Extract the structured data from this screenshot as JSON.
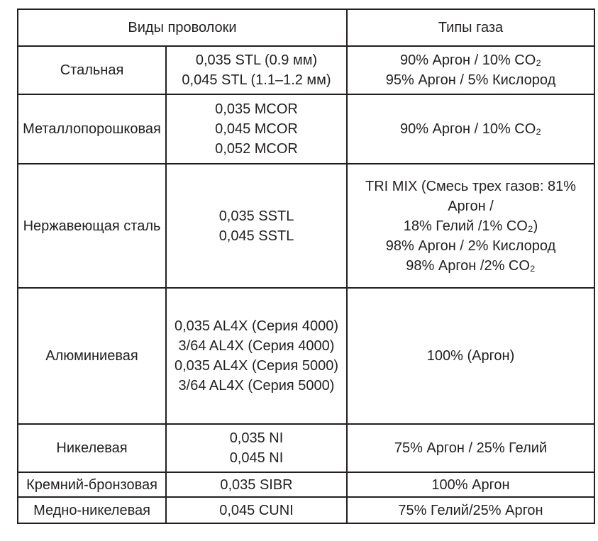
{
  "table": {
    "header": {
      "wire_types": "Виды проволоки",
      "gas_types": "Типы газа"
    },
    "rows": [
      {
        "wire_type": "Стальная",
        "wire_sizes": [
          "0,035 STL (0.9 мм)",
          "0,045 STL (1.1–1.2 мм)"
        ],
        "gas_list": [
          "90% Аргон / 10% CO₂",
          "95% Аргон / 5% Кислород"
        ]
      },
      {
        "wire_type": "Металлопорошковая",
        "wire_sizes": [
          "0,035 MCOR",
          "0,045 MCOR",
          "0,052 MCOR"
        ],
        "gas_list": [
          "90% Аргон / 10% CO₂"
        ]
      },
      {
        "wire_type": "Нержавеющая сталь",
        "wire_sizes": [
          "0,035 SSTL",
          "0,045 SSTL"
        ],
        "gas_list": [
          "TRI MIX (Смесь трех газов: 81%",
          "Аргон /",
          "18% Гелий /1% CO₂)",
          "98% Аргон / 2% Кислород",
          "98% Аргон /2% CO₂"
        ]
      },
      {
        "wire_type": "Алюминиевая",
        "wire_sizes": [
          "0,035 AL4X (Серия 4000)",
          "3/64 AL4X (Серия 4000)",
          "0,035 AL4X (Серия 5000)",
          "3/64 AL4X (Серия 5000)"
        ],
        "gas_list": [
          "100% (Аргон)"
        ]
      },
      {
        "wire_type": "Никелевая",
        "wire_sizes": [
          "0,035 NI",
          "0,045 NI"
        ],
        "gas_list": [
          "75% Аргон / 25% Гелий"
        ]
      },
      {
        "wire_type": "Кремний-бронзовая",
        "wire_sizes": [
          "0,035 SIBR"
        ],
        "gas_list": [
          "100% Аргон"
        ]
      },
      {
        "wire_type": "Медно-никелевая",
        "wire_sizes": [
          "0,045 CUNI"
        ],
        "gas_list": [
          "75% Гелий/25% Аргон"
        ]
      }
    ]
  }
}
